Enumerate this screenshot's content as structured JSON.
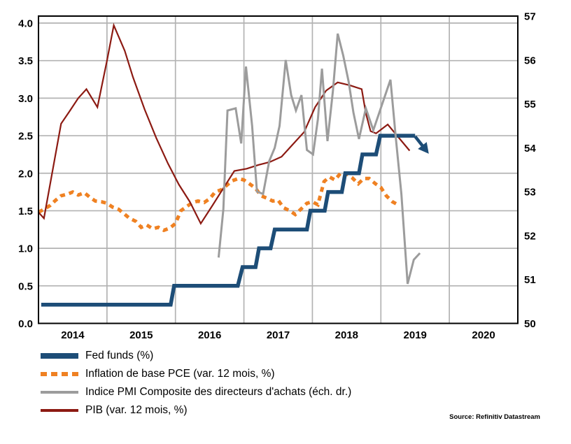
{
  "source": "Source: Refinitiv Datastream",
  "chart_data": {
    "type": "line",
    "title": "",
    "xlabel": "",
    "ylabel_left": "",
    "ylabel_right": "",
    "xlim": [
      2014,
      2021
    ],
    "ylim_left": [
      0,
      4
    ],
    "ylim_right": [
      50,
      57
    ],
    "grid": {
      "on": true,
      "h_values": [
        0.5,
        1.0,
        1.5,
        2.0,
        2.5,
        3.0,
        3.5,
        4.0
      ],
      "v_years": [
        2015,
        2016,
        2017,
        2018,
        2019,
        2020
      ]
    },
    "colors": {
      "grid": "#B3B3B3",
      "border": "#000000",
      "background": "#FFFFFF"
    },
    "axes": {
      "left_ticks": [
        {
          "v": 4.0,
          "label": "4.0"
        },
        {
          "v": 3.5,
          "label": "3.5"
        },
        {
          "v": 3.0,
          "label": "3.0"
        },
        {
          "v": 2.5,
          "label": "2.5"
        },
        {
          "v": 2.0,
          "label": "2.0"
        },
        {
          "v": 1.5,
          "label": "1.5"
        },
        {
          "v": 1.0,
          "label": "1.0"
        },
        {
          "v": 0.5,
          "label": "0.5"
        },
        {
          "v": 0.0,
          "label": "0.0"
        }
      ],
      "right_ticks": [
        {
          "v": 57,
          "label": "57"
        },
        {
          "v": 56,
          "label": "56"
        },
        {
          "v": 55,
          "label": "55"
        },
        {
          "v": 54,
          "label": "54"
        },
        {
          "v": 53,
          "label": "53"
        },
        {
          "v": 52,
          "label": "52"
        },
        {
          "v": 51,
          "label": "51"
        },
        {
          "v": 50,
          "label": "50"
        }
      ],
      "x_ticks": [
        {
          "v": 2014.5,
          "label": "2014"
        },
        {
          "v": 2015.5,
          "label": "2015"
        },
        {
          "v": 2016.5,
          "label": "2016"
        },
        {
          "v": 2017.5,
          "label": "2017"
        },
        {
          "v": 2018.5,
          "label": "2018"
        },
        {
          "v": 2019.5,
          "label": "2019"
        },
        {
          "v": 2020.5,
          "label": "2020"
        }
      ]
    },
    "legend_position": "bottom-left",
    "draw_order": [
      "pce",
      "pib",
      "fed_funds",
      "pmi"
    ],
    "series": [
      {
        "name": "fed_funds",
        "label": "Fed funds (%)",
        "axis": "left",
        "color": "#1D4D77",
        "width": 5.5,
        "style": "solid",
        "points": [
          [
            2014.04,
            0.25
          ],
          [
            2015.93,
            0.25
          ],
          [
            2015.98,
            0.5
          ],
          [
            2016.91,
            0.5
          ],
          [
            2016.98,
            0.75
          ],
          [
            2017.17,
            0.75
          ],
          [
            2017.22,
            1.0
          ],
          [
            2017.39,
            1.0
          ],
          [
            2017.45,
            1.25
          ],
          [
            2017.92,
            1.25
          ],
          [
            2017.97,
            1.5
          ],
          [
            2018.18,
            1.5
          ],
          [
            2018.23,
            1.75
          ],
          [
            2018.43,
            1.75
          ],
          [
            2018.48,
            2.0
          ],
          [
            2018.68,
            2.0
          ],
          [
            2018.73,
            2.25
          ],
          [
            2018.93,
            2.25
          ],
          [
            2018.99,
            2.5
          ],
          [
            2019.5,
            2.5
          ]
        ]
      },
      {
        "name": "pce",
        "label": "Inflation de base PCE (var. 12 mois, %)",
        "axis": "left",
        "color": "#EF8122",
        "width": 5,
        "style": "dashed",
        "points": [
          [
            2014.0,
            1.48
          ],
          [
            2014.08,
            1.52
          ],
          [
            2014.17,
            1.57
          ],
          [
            2014.25,
            1.64
          ],
          [
            2014.33,
            1.7
          ],
          [
            2014.42,
            1.72
          ],
          [
            2014.5,
            1.75
          ],
          [
            2014.58,
            1.71
          ],
          [
            2014.67,
            1.74
          ],
          [
            2014.75,
            1.68
          ],
          [
            2014.83,
            1.63
          ],
          [
            2014.92,
            1.62
          ],
          [
            2015.0,
            1.6
          ],
          [
            2015.08,
            1.55
          ],
          [
            2015.17,
            1.52
          ],
          [
            2015.25,
            1.46
          ],
          [
            2015.33,
            1.4
          ],
          [
            2015.42,
            1.36
          ],
          [
            2015.5,
            1.28
          ],
          [
            2015.58,
            1.31
          ],
          [
            2015.67,
            1.26
          ],
          [
            2015.75,
            1.28
          ],
          [
            2015.83,
            1.24
          ],
          [
            2015.92,
            1.27
          ],
          [
            2016.0,
            1.33
          ],
          [
            2016.08,
            1.5
          ],
          [
            2016.17,
            1.56
          ],
          [
            2016.25,
            1.61
          ],
          [
            2016.33,
            1.63
          ],
          [
            2016.42,
            1.61
          ],
          [
            2016.5,
            1.66
          ],
          [
            2016.58,
            1.75
          ],
          [
            2016.67,
            1.78
          ],
          [
            2016.75,
            1.84
          ],
          [
            2016.83,
            1.9
          ],
          [
            2016.92,
            1.93
          ],
          [
            2017.0,
            1.91
          ],
          [
            2017.08,
            1.86
          ],
          [
            2017.17,
            1.8
          ],
          [
            2017.25,
            1.7
          ],
          [
            2017.33,
            1.67
          ],
          [
            2017.42,
            1.63
          ],
          [
            2017.5,
            1.64
          ],
          [
            2017.58,
            1.54
          ],
          [
            2017.67,
            1.5
          ],
          [
            2017.75,
            1.45
          ],
          [
            2017.83,
            1.52
          ],
          [
            2017.92,
            1.6
          ],
          [
            2018.0,
            1.62
          ],
          [
            2018.08,
            1.58
          ],
          [
            2018.17,
            1.89
          ],
          [
            2018.25,
            1.95
          ],
          [
            2018.33,
            1.91
          ],
          [
            2018.42,
            2.01
          ],
          [
            2018.5,
            1.99
          ],
          [
            2018.58,
            1.94
          ],
          [
            2018.67,
            1.86
          ],
          [
            2018.75,
            1.93
          ],
          [
            2018.83,
            1.93
          ],
          [
            2018.92,
            1.86
          ],
          [
            2019.0,
            1.81
          ],
          [
            2019.08,
            1.7
          ],
          [
            2019.17,
            1.62
          ],
          [
            2019.25,
            1.58
          ]
        ]
      },
      {
        "name": "pmi",
        "label": "Indice PMI Composite des directeurs d'achats (éch. dr.)",
        "axis": "right",
        "color": "#9C9C9C",
        "width": 3,
        "style": "solid",
        "points": [
          [
            2016.63,
            51.5
          ],
          [
            2016.7,
            52.6
          ],
          [
            2016.76,
            54.85
          ],
          [
            2016.88,
            54.9
          ],
          [
            2016.96,
            54.1
          ],
          [
            2017.03,
            55.85
          ],
          [
            2017.12,
            54.5
          ],
          [
            2017.19,
            53.0
          ],
          [
            2017.28,
            52.95
          ],
          [
            2017.37,
            53.7
          ],
          [
            2017.45,
            54.0
          ],
          [
            2017.52,
            54.5
          ],
          [
            2017.61,
            56.0
          ],
          [
            2017.69,
            55.2
          ],
          [
            2017.76,
            54.85
          ],
          [
            2017.84,
            55.2
          ],
          [
            2017.92,
            53.95
          ],
          [
            2018.01,
            53.85
          ],
          [
            2018.08,
            54.65
          ],
          [
            2018.14,
            55.8
          ],
          [
            2018.22,
            54.15
          ],
          [
            2018.3,
            55.3
          ],
          [
            2018.37,
            56.6
          ],
          [
            2018.45,
            56.1
          ],
          [
            2018.53,
            55.5
          ],
          [
            2018.6,
            54.8
          ],
          [
            2018.68,
            54.2
          ],
          [
            2018.78,
            54.9
          ],
          [
            2018.89,
            54.4
          ],
          [
            2019.14,
            55.55
          ],
          [
            2019.22,
            54.2
          ],
          [
            2019.3,
            52.95
          ],
          [
            2019.39,
            50.9
          ],
          [
            2019.48,
            51.45
          ],
          [
            2019.57,
            51.6
          ]
        ]
      },
      {
        "name": "pib",
        "label": "PIB (var. 12 mois, %)",
        "axis": "left",
        "color": "#8C1A12",
        "width": 2.2,
        "style": "solid",
        "points": [
          [
            2014.0,
            1.48
          ],
          [
            2014.08,
            1.4
          ],
          [
            2014.33,
            2.66
          ],
          [
            2014.45,
            2.82
          ],
          [
            2014.58,
            3.0
          ],
          [
            2014.7,
            3.12
          ],
          [
            2014.86,
            2.88
          ],
          [
            2015.0,
            3.5
          ],
          [
            2015.1,
            3.97
          ],
          [
            2015.26,
            3.63
          ],
          [
            2015.38,
            3.28
          ],
          [
            2015.55,
            2.85
          ],
          [
            2015.72,
            2.47
          ],
          [
            2015.89,
            2.13
          ],
          [
            2016.05,
            1.85
          ],
          [
            2016.21,
            1.62
          ],
          [
            2016.37,
            1.33
          ],
          [
            2016.54,
            1.57
          ],
          [
            2016.7,
            1.8
          ],
          [
            2016.86,
            2.03
          ],
          [
            2017.04,
            2.06
          ],
          [
            2017.21,
            2.11
          ],
          [
            2017.38,
            2.15
          ],
          [
            2017.55,
            2.22
          ],
          [
            2017.71,
            2.38
          ],
          [
            2017.88,
            2.55
          ],
          [
            2018.04,
            2.88
          ],
          [
            2018.2,
            3.1
          ],
          [
            2018.37,
            3.21
          ],
          [
            2018.55,
            3.17
          ],
          [
            2018.72,
            3.12
          ],
          [
            2018.78,
            2.8
          ],
          [
            2018.85,
            2.56
          ],
          [
            2018.93,
            2.53
          ],
          [
            2019.1,
            2.65
          ],
          [
            2019.42,
            2.3
          ]
        ]
      }
    ],
    "fed_arrow": {
      "from": [
        2019.5,
        2.49
      ],
      "to": [
        2019.7,
        2.26
      ],
      "color": "#1D4D77"
    }
  }
}
